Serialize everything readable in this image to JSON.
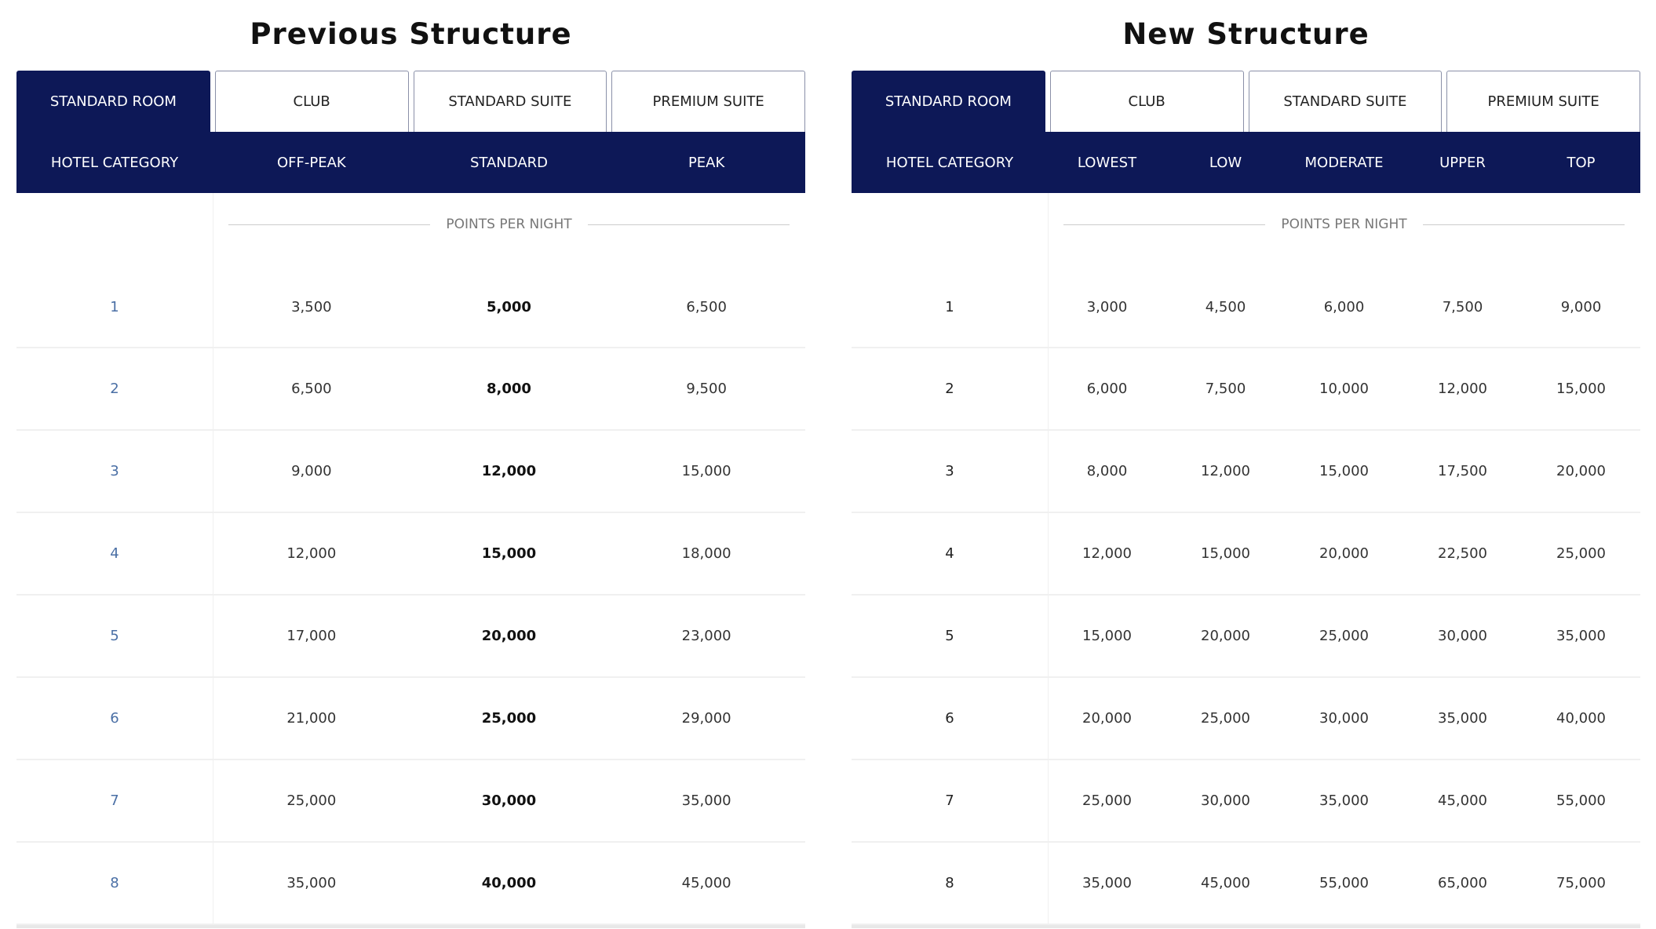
{
  "tables": [
    {
      "title": "Previous Structure",
      "tabs": [
        "STANDARD ROOM",
        "CLUB",
        "STANDARD SUITE",
        "PREMIUM SUITE"
      ],
      "active_tab": 0,
      "columns": [
        "HOTEL CATEGORY",
        "OFF-PEAK",
        "STANDARD",
        "PEAK"
      ],
      "bold_column": 2,
      "points_label": "POINTS PER NIGHT",
      "rows": [
        [
          "1",
          "3,500",
          "5,000",
          "6,500"
        ],
        [
          "2",
          "6,500",
          "8,000",
          "9,500"
        ],
        [
          "3",
          "9,000",
          "12,000",
          "15,000"
        ],
        [
          "4",
          "12,000",
          "15,000",
          "18,000"
        ],
        [
          "5",
          "17,000",
          "20,000",
          "23,000"
        ],
        [
          "6",
          "21,000",
          "25,000",
          "29,000"
        ],
        [
          "7",
          "25,000",
          "30,000",
          "35,000"
        ],
        [
          "8",
          "35,000",
          "40,000",
          "45,000"
        ]
      ]
    },
    {
      "title": "New Structure",
      "tabs": [
        "STANDARD ROOM",
        "CLUB",
        "STANDARD SUITE",
        "PREMIUM SUITE"
      ],
      "active_tab": 0,
      "columns": [
        "HOTEL CATEGORY",
        "LOWEST",
        "LOW",
        "MODERATE",
        "UPPER",
        "TOP"
      ],
      "bold_column": -1,
      "points_label": "POINTS PER NIGHT",
      "rows": [
        [
          "1",
          "3,000",
          "4,500",
          "6,000",
          "7,500",
          "9,000"
        ],
        [
          "2",
          "6,000",
          "7,500",
          "10,000",
          "12,000",
          "15,000"
        ],
        [
          "3",
          "8,000",
          "12,000",
          "15,000",
          "17,500",
          "20,000"
        ],
        [
          "4",
          "12,000",
          "15,000",
          "20,000",
          "22,500",
          "25,000"
        ],
        [
          "5",
          "15,000",
          "20,000",
          "25,000",
          "30,000",
          "35,000"
        ],
        [
          "6",
          "20,000",
          "25,000",
          "30,000",
          "35,000",
          "40,000"
        ],
        [
          "7",
          "25,000",
          "30,000",
          "35,000",
          "45,000",
          "55,000"
        ],
        [
          "8",
          "35,000",
          "45,000",
          "55,000",
          "65,000",
          "75,000"
        ]
      ]
    }
  ],
  "colors": {
    "navy": "#0d1857",
    "category_link": "#4a6fa5"
  }
}
